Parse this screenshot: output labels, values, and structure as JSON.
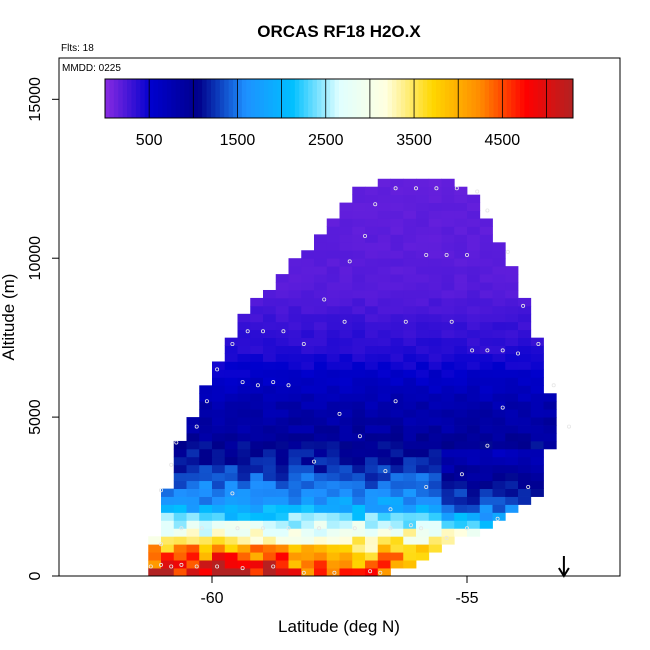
{
  "chart_data": {
    "type": "heatmap",
    "title": "ORCAS RF18 H2O.X",
    "annotations": {
      "flights": "Flts: 18",
      "date": "MMDD: 0225"
    },
    "xlabel": "Latitude (deg N)",
    "ylabel": "Altitude (m)",
    "xlim": [
      -63,
      -52
    ],
    "ylim": [
      0,
      16300
    ],
    "x_ticks": [
      -60,
      -55
    ],
    "x_tick_labels": [
      "-60",
      "-55"
    ],
    "y_ticks": [
      0,
      5000,
      10000,
      15000
    ],
    "y_tick_labels": [
      "0",
      "5000",
      "10000",
      "15000"
    ],
    "colorbar": {
      "range": [
        0,
        5300
      ],
      "ticks": [
        500,
        1500,
        2500,
        3500,
        4500
      ],
      "tick_labels": [
        "500",
        "1500",
        "2500",
        "3500",
        "4500"
      ],
      "colors": [
        "#8a2be2",
        "#0000cd",
        "#00008b",
        "#1e90ff",
        "#00bfff",
        "#e0ffff",
        "#ffffe0",
        "#ffd700",
        "#ff8c00",
        "#ff0000",
        "#b22222"
      ]
    },
    "grid": {
      "lat_step": 0.25,
      "alt_step": 250
    },
    "envelope": [
      {
        "alt": 0,
        "lat_min": -61.3,
        "lat_max": -56.6
      },
      {
        "alt": 300,
        "lat_min": -61.3,
        "lat_max": -56.2
      },
      {
        "alt": 900,
        "lat_min": -61.2,
        "lat_max": -55.6
      },
      {
        "alt": 1500,
        "lat_min": -61.0,
        "lat_max": -54.5
      },
      {
        "alt": 2500,
        "lat_min": -60.9,
        "lat_max": -53.6
      },
      {
        "alt": 3500,
        "lat_min": -60.8,
        "lat_max": -53.5
      },
      {
        "alt": 4700,
        "lat_min": -60.5,
        "lat_max": -53.2
      },
      {
        "alt": 6700,
        "lat_min": -59.9,
        "lat_max": -53.5
      },
      {
        "alt": 8600,
        "lat_min": -59.2,
        "lat_max": -53.8
      },
      {
        "alt": 10500,
        "lat_min": -58.0,
        "lat_max": -54.4
      },
      {
        "alt": 12200,
        "lat_min": -57.2,
        "lat_max": -54.9
      },
      {
        "alt": 12500,
        "lat_min": -56.6,
        "lat_max": -55.3
      }
    ],
    "profile": [
      {
        "alt": 0,
        "value": 4700
      },
      {
        "alt": 500,
        "value": 4300
      },
      {
        "alt": 900,
        "value": 3700
      },
      {
        "alt": 1300,
        "value": 3100
      },
      {
        "alt": 1700,
        "value": 2500
      },
      {
        "alt": 2200,
        "value": 1800
      },
      {
        "alt": 2800,
        "value": 1500
      },
      {
        "alt": 3500,
        "value": 1200
      },
      {
        "alt": 4500,
        "value": 900
      },
      {
        "alt": 5500,
        "value": 750
      },
      {
        "alt": 7000,
        "value": 400
      },
      {
        "alt": 9000,
        "value": 200
      },
      {
        "alt": 12500,
        "value": 150
      }
    ],
    "track_points": [
      [
        -61.2,
        300
      ],
      [
        -61.0,
        350
      ],
      [
        -60.8,
        300
      ],
      [
        -60.6,
        350
      ],
      [
        -60.3,
        300
      ],
      [
        -59.9,
        300
      ],
      [
        -59.4,
        250
      ],
      [
        -58.8,
        300
      ],
      [
        -58.2,
        100
      ],
      [
        -57.6,
        100
      ],
      [
        -56.9,
        150
      ],
      [
        -56.7,
        100
      ],
      [
        -61.0,
        1000
      ],
      [
        -60.6,
        1500
      ],
      [
        -60.2,
        1500
      ],
      [
        -59.5,
        1500
      ],
      [
        -59.0,
        1500
      ],
      [
        -58.5,
        1500
      ],
      [
        -57.9,
        1500
      ],
      [
        -57.2,
        1500
      ],
      [
        -56.5,
        1500
      ],
      [
        -55.9,
        1500
      ],
      [
        -55.4,
        1200
      ],
      [
        -55.0,
        1500
      ],
      [
        -54.4,
        1800
      ],
      [
        -56.5,
        2100
      ],
      [
        -56.1,
        1600
      ],
      [
        -61.0,
        2700
      ],
      [
        -60.8,
        3500
      ],
      [
        -60.7,
        4200
      ],
      [
        -60.3,
        4700
      ],
      [
        -60.1,
        5500
      ],
      [
        -59.9,
        6500
      ],
      [
        -59.6,
        7300
      ],
      [
        -59.3,
        7700
      ],
      [
        -59.0,
        7700
      ],
      [
        -58.6,
        7700
      ],
      [
        -58.2,
        7300
      ],
      [
        -57.8,
        8700
      ],
      [
        -57.3,
        9900
      ],
      [
        -56.8,
        11700
      ],
      [
        -56.4,
        12200
      ],
      [
        -56.0,
        12200
      ],
      [
        -55.6,
        12200
      ],
      [
        -55.2,
        12200
      ],
      [
        -54.8,
        12100
      ],
      [
        -54.6,
        11500
      ],
      [
        -54.2,
        10200
      ],
      [
        -53.9,
        8500
      ],
      [
        -53.6,
        7300
      ],
      [
        -53.3,
        6000
      ],
      [
        -53.0,
        4700
      ],
      [
        -54.9,
        7100
      ],
      [
        -54.6,
        7100
      ],
      [
        -54.3,
        7100
      ],
      [
        -54.0,
        7000
      ],
      [
        -55.3,
        8000
      ],
      [
        -55.8,
        10100
      ],
      [
        -55.4,
        10100
      ],
      [
        -55.0,
        10100
      ],
      [
        -56.2,
        8000
      ],
      [
        -56.4,
        5500
      ],
      [
        -57.1,
        4400
      ],
      [
        -57.5,
        5100
      ],
      [
        -58.0,
        3600
      ],
      [
        -58.5,
        6000
      ],
      [
        -58.8,
        6100
      ],
      [
        -59.1,
        6000
      ],
      [
        -59.4,
        6100
      ],
      [
        -56.6,
        3300
      ],
      [
        -55.8,
        2800
      ],
      [
        -55.1,
        3200
      ],
      [
        -54.6,
        4100
      ],
      [
        -54.3,
        5300
      ],
      [
        -53.8,
        2800
      ],
      [
        -57.0,
        10700
      ],
      [
        -57.4,
        8000
      ],
      [
        -59.6,
        2600
      ]
    ],
    "marker": {
      "type": "arrow",
      "lat": -53.1,
      "direction": "down"
    }
  }
}
